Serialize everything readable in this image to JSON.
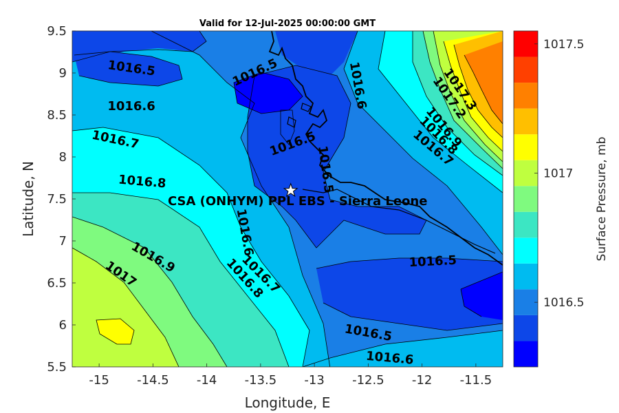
{
  "title": "Valid for 12-Jul-2025 00:00:00 GMT",
  "xlabel": "Longitude, E",
  "ylabel": "Latitude, N",
  "colorbar_label": "Surface Pressure, mb",
  "site": {
    "name": "CSA (ONHYM) PPL EBS - Sierra Leone",
    "lon": -13.22,
    "lat": 7.6
  },
  "chart_data": {
    "type": "heatmap",
    "xlim": [
      -15.25,
      -11.25
    ],
    "ylim": [
      5.5,
      9.5
    ],
    "x_ticks": [
      -15,
      -14.5,
      -14,
      -13.5,
      -13,
      -12.5,
      -12,
      -11.5
    ],
    "x_tick_labels": [
      "-15",
      "-14.5",
      "-14",
      "-13.5",
      "-13",
      "-12.5",
      "-12",
      "-11.5"
    ],
    "y_ticks": [
      5.5,
      6,
      6.5,
      7,
      7.5,
      8,
      8.5,
      9,
      9.5
    ],
    "y_tick_labels": [
      "5.5",
      "6",
      "6.5",
      "7",
      "7.5",
      "8",
      "8.5",
      "9",
      "9.5"
    ],
    "colorbar_ticks": [
      1016.5,
      1017,
      1017.5
    ],
    "colorbar_tick_labels": [
      "1016.5",
      "1017",
      "1017.5"
    ],
    "levels": [
      1016.3,
      1016.4,
      1016.5,
      1016.6,
      1016.7,
      1016.8,
      1016.9,
      1017.0,
      1017.1,
      1017.2,
      1017.3,
      1017.4,
      1017.5
    ],
    "level_colors": [
      "#0000ff",
      "#0d47e8",
      "#1a7fe6",
      "#00bbf0",
      "#00ffff",
      "#3ce6c3",
      "#7ffa7f",
      "#bfff3f",
      "#ffff00",
      "#ffbf00",
      "#ff8000",
      "#ff4000",
      "#ff0000"
    ],
    "contour_labels": [
      {
        "text": "1016.5",
        "lon": -14.7,
        "lat": 9.05,
        "angle": 8
      },
      {
        "text": "1016.6",
        "lon": -14.7,
        "lat": 8.6,
        "angle": 0
      },
      {
        "text": "1016.7",
        "lon": -14.85,
        "lat": 8.2,
        "angle": 12
      },
      {
        "text": "1016.8",
        "lon": -14.6,
        "lat": 7.7,
        "angle": 5
      },
      {
        "text": "1016.9",
        "lon": -14.5,
        "lat": 6.8,
        "angle": 30
      },
      {
        "text": "1017",
        "lon": -14.8,
        "lat": 6.6,
        "angle": 35
      },
      {
        "text": "1016.5",
        "lon": -13.55,
        "lat": 9.0,
        "angle": -25
      },
      {
        "text": "1016.6",
        "lon": -12.6,
        "lat": 8.85,
        "angle": 80
      },
      {
        "text": "1016.5",
        "lon": -13.2,
        "lat": 8.15,
        "angle": -20
      },
      {
        "text": "1016.5",
        "lon": -12.9,
        "lat": 7.85,
        "angle": 82
      },
      {
        "text": "1016.6",
        "lon": -13.65,
        "lat": 7.1,
        "angle": 80
      },
      {
        "text": "1016.7",
        "lon": -13.5,
        "lat": 6.6,
        "angle": 45
      },
      {
        "text": "1016.8",
        "lon": -13.65,
        "lat": 6.55,
        "angle": 48
      },
      {
        "text": "1016.5",
        "lon": -11.9,
        "lat": 6.75,
        "angle": -3
      },
      {
        "text": "1016.5",
        "lon": -12.5,
        "lat": 5.9,
        "angle": 10
      },
      {
        "text": "1016.6",
        "lon": -12.3,
        "lat": 5.6,
        "angle": 5
      },
      {
        "text": "1017.3",
        "lon": -11.65,
        "lat": 8.8,
        "angle": 55
      },
      {
        "text": "1017.2",
        "lon": -11.75,
        "lat": 8.7,
        "angle": 55
      },
      {
        "text": "1016.9",
        "lon": -11.8,
        "lat": 8.35,
        "angle": 50
      },
      {
        "text": "1016.8",
        "lon": -11.85,
        "lat": 8.25,
        "angle": 45
      },
      {
        "text": "1016.7",
        "lon": -11.9,
        "lat": 8.1,
        "angle": 40
      }
    ]
  }
}
